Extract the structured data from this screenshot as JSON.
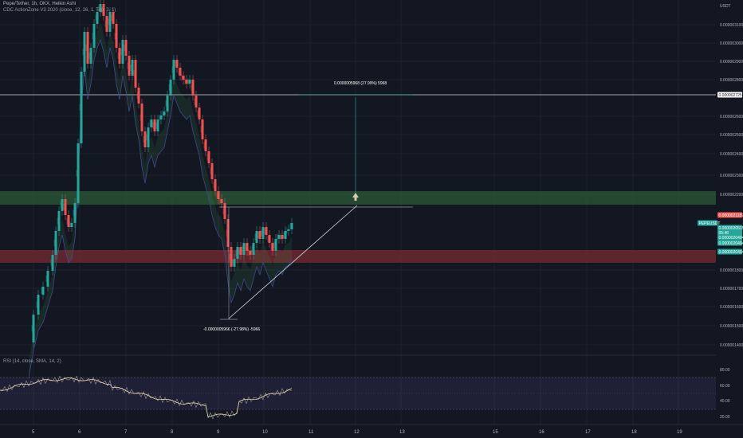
{
  "legend": {
    "main": "Pepe/Tether, 1h, OKX, Heikin Ashi",
    "indicator": "CDC ActionZone V3 2020 (close, 12, 26, 1, Top, 3, 1)",
    "rsi": "RSI (14, close, SMA, 14, 2)"
  },
  "price_axis": {
    "currency": "USDT",
    "ticks": [
      "0.0000031000",
      "0.0000030000",
      "0.0000029000",
      "0.0000028000",
      "0.0000026000",
      "0.0000025000",
      "0.0000024000",
      "0.0000023000",
      "0.0000022000",
      "0.0000018000",
      "0.0000017000",
      "0.0000016000",
      "0.0000015000",
      "0.0000014000"
    ]
  },
  "price_tags": [
    {
      "text": "0.0000027259",
      "color": "#ffffff",
      "fg": "#131722"
    },
    {
      "text": "0.0000021159",
      "color": "#ef5350",
      "fg": "#ffffff"
    },
    {
      "text": "PEPEUSDT",
      "color": "#26a69a",
      "fg": "#ffffff"
    },
    {
      "text": "0.0000020515",
      "color": "#26a69a",
      "fg": "#ffffff"
    },
    {
      "text": "05:46",
      "color": "#26a69a",
      "fg": "#ffffff"
    },
    {
      "text": "0.0000020404",
      "color": "#26a69a",
      "fg": "#ffffff"
    },
    {
      "text": "0.0000020404",
      "color": "#26a69a",
      "fg": "#ffffff"
    },
    {
      "text": "0.0000020404",
      "color": "#26a69a",
      "fg": "#ffffff"
    }
  ],
  "rsi_axis": {
    "ticks": [
      "80.00",
      "60.00",
      "40.00",
      "20.00"
    ]
  },
  "time_axis": {
    "ticks": [
      "5",
      "6",
      "7",
      "8",
      "9",
      "10",
      "11",
      "12",
      "13",
      "15",
      "16",
      "17",
      "18",
      "19"
    ]
  },
  "annotations": {
    "up_measure": "0.0000005968 (27.99%) 5968",
    "down_measure": "-0.0000005966 (-27.98%) -5966"
  },
  "colors": {
    "bg": "#131722",
    "up": "#26a69a",
    "down": "#ef5350",
    "green_zone": "#2b5a35",
    "red_zone": "#6e2a2f",
    "ema": "#3f4a8a",
    "rsi_line": "#9598a1",
    "rsi_ma": "#f0d9a8"
  }
}
